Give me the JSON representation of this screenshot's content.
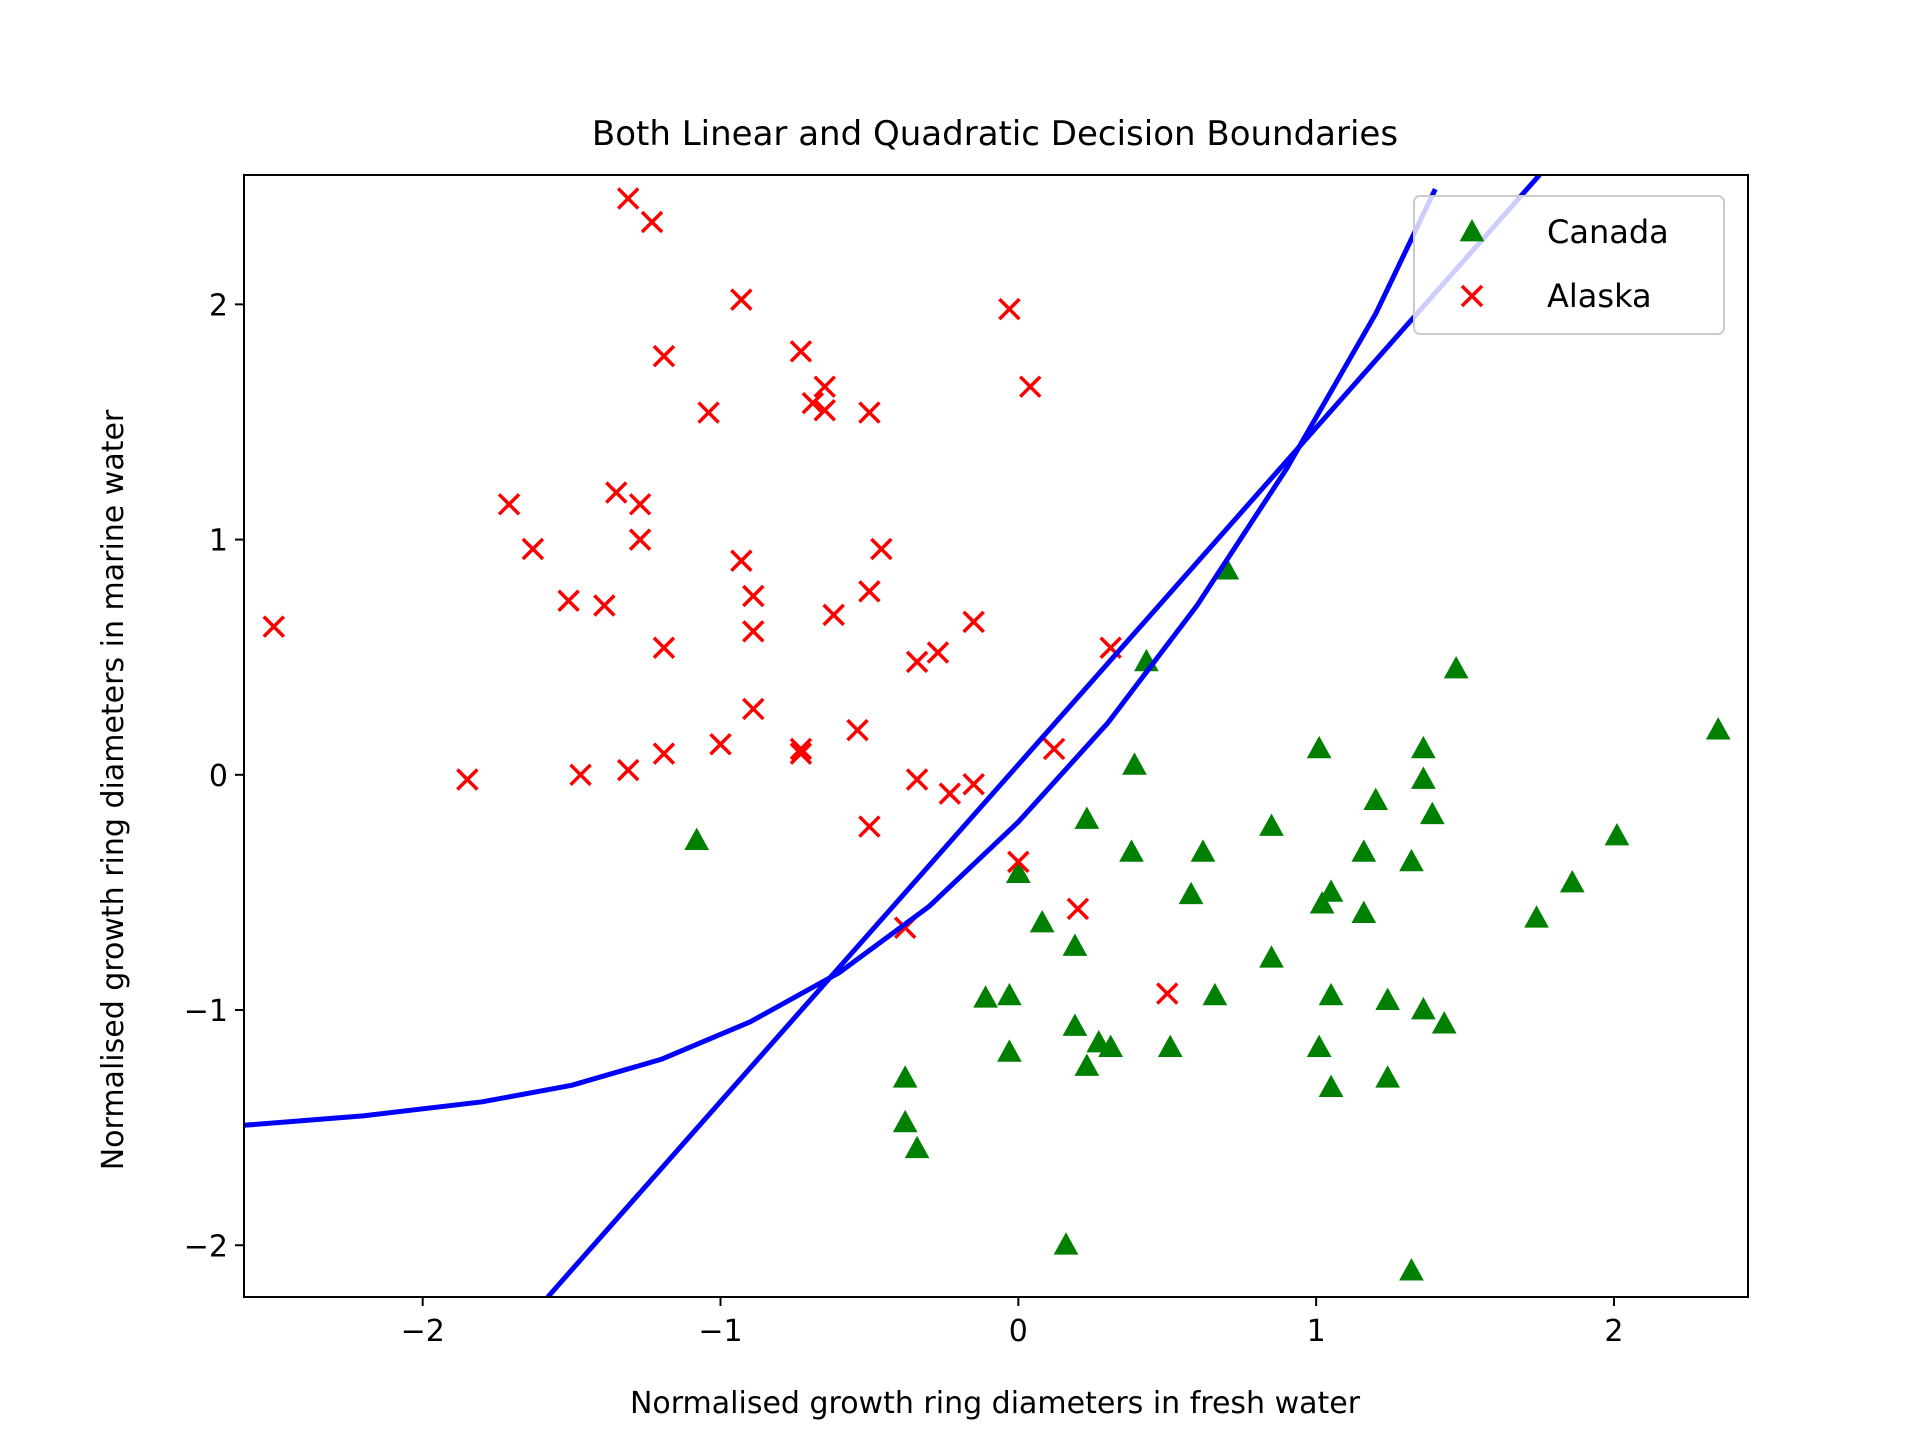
{
  "chart_data": {
    "type": "scatter",
    "title": "Both Linear and Quadratic Decision Boundaries",
    "xlabel": "Normalised growth ring diameters in fresh water",
    "ylabel": "Normalised growth ring diameters in marine water",
    "xlim": [
      -2.6,
      2.45
    ],
    "ylim": [
      -2.22,
      2.55
    ],
    "xticks": [
      -2,
      -1,
      0,
      1,
      2
    ],
    "yticks": [
      -2,
      -1,
      0,
      1,
      2
    ],
    "grid": false,
    "legend_position": "upper-right",
    "series": [
      {
        "name": "Canada",
        "marker": "triangle",
        "color": "#008000",
        "points": [
          [
            -1.08,
            -0.28
          ],
          [
            0.7,
            0.87
          ],
          [
            0.43,
            0.48
          ],
          [
            1.47,
            0.45
          ],
          [
            2.35,
            0.19
          ],
          [
            0.39,
            0.04
          ],
          [
            1.01,
            0.11
          ],
          [
            1.36,
            0.11
          ],
          [
            1.36,
            -0.02
          ],
          [
            1.2,
            -0.11
          ],
          [
            1.39,
            -0.17
          ],
          [
            0.23,
            -0.19
          ],
          [
            0.85,
            -0.22
          ],
          [
            2.01,
            -0.26
          ],
          [
            0.38,
            -0.33
          ],
          [
            0.62,
            -0.33
          ],
          [
            1.16,
            -0.33
          ],
          [
            1.32,
            -0.37
          ],
          [
            0.0,
            -0.42
          ],
          [
            1.86,
            -0.46
          ],
          [
            1.05,
            -0.5
          ],
          [
            0.58,
            -0.51
          ],
          [
            1.02,
            -0.55
          ],
          [
            1.16,
            -0.59
          ],
          [
            1.74,
            -0.61
          ],
          [
            0.08,
            -0.63
          ],
          [
            0.19,
            -0.73
          ],
          [
            0.85,
            -0.78
          ],
          [
            -0.11,
            -0.95
          ],
          [
            -0.03,
            -0.94
          ],
          [
            0.66,
            -0.94
          ],
          [
            1.05,
            -0.94
          ],
          [
            1.24,
            -0.96
          ],
          [
            1.36,
            -1.0
          ],
          [
            1.43,
            -1.06
          ],
          [
            0.19,
            -1.07
          ],
          [
            0.27,
            -1.14
          ],
          [
            0.31,
            -1.16
          ],
          [
            0.51,
            -1.16
          ],
          [
            1.01,
            -1.16
          ],
          [
            -0.03,
            -1.18
          ],
          [
            0.23,
            -1.24
          ],
          [
            -0.38,
            -1.29
          ],
          [
            1.24,
            -1.29
          ],
          [
            1.05,
            -1.33
          ],
          [
            -0.38,
            -1.48
          ],
          [
            -0.34,
            -1.59
          ],
          [
            0.16,
            -2.0
          ],
          [
            1.32,
            -2.11
          ]
        ]
      },
      {
        "name": "Alaska",
        "marker": "x",
        "color": "#ff0000",
        "points": [
          [
            -1.31,
            2.45
          ],
          [
            -1.23,
            2.35
          ],
          [
            -0.93,
            2.02
          ],
          [
            -0.03,
            1.98
          ],
          [
            -1.19,
            1.78
          ],
          [
            -0.73,
            1.8
          ],
          [
            0.04,
            1.65
          ],
          [
            -0.65,
            1.65
          ],
          [
            -0.69,
            1.58
          ],
          [
            -0.65,
            1.55
          ],
          [
            -1.04,
            1.54
          ],
          [
            -0.5,
            1.54
          ],
          [
            -1.35,
            1.2
          ],
          [
            -1.71,
            1.15
          ],
          [
            -1.27,
            1.15
          ],
          [
            -1.27,
            1.0
          ],
          [
            -1.63,
            0.96
          ],
          [
            -0.46,
            0.96
          ],
          [
            -0.93,
            0.91
          ],
          [
            -0.5,
            0.78
          ],
          [
            -0.89,
            0.76
          ],
          [
            -1.51,
            0.74
          ],
          [
            -1.39,
            0.72
          ],
          [
            -0.62,
            0.68
          ],
          [
            -0.15,
            0.65
          ],
          [
            -2.5,
            0.63
          ],
          [
            -0.89,
            0.61
          ],
          [
            -1.19,
            0.54
          ],
          [
            0.31,
            0.54
          ],
          [
            -0.27,
            0.52
          ],
          [
            -0.34,
            0.48
          ],
          [
            -0.89,
            0.28
          ],
          [
            -0.54,
            0.19
          ],
          [
            -1.0,
            0.13
          ],
          [
            0.12,
            0.11
          ],
          [
            -0.73,
            0.11
          ],
          [
            -0.73,
            0.09
          ],
          [
            -1.19,
            0.09
          ],
          [
            -1.31,
            0.02
          ],
          [
            -1.47,
            0.0
          ],
          [
            -1.85,
            -0.02
          ],
          [
            -0.34,
            -0.02
          ],
          [
            -0.15,
            -0.04
          ],
          [
            -0.23,
            -0.08
          ],
          [
            -0.5,
            -0.22
          ],
          [
            0.0,
            -0.37
          ],
          [
            0.2,
            -0.57
          ],
          [
            -0.38,
            -0.65
          ],
          [
            0.5,
            -0.93
          ]
        ]
      }
    ],
    "boundaries": [
      {
        "type": "linear",
        "color": "#0000ff",
        "points": [
          [
            -1.58,
            -2.22
          ],
          [
            1.75,
            2.55
          ]
        ]
      },
      {
        "type": "quadratic",
        "color": "#0000ff",
        "points": [
          [
            -2.6,
            -1.49
          ],
          [
            -2.2,
            -1.45
          ],
          [
            -1.8,
            -1.39
          ],
          [
            -1.5,
            -1.32
          ],
          [
            -1.2,
            -1.21
          ],
          [
            -0.9,
            -1.05
          ],
          [
            -0.6,
            -0.84
          ],
          [
            -0.3,
            -0.56
          ],
          [
            0.0,
            -0.2
          ],
          [
            0.3,
            0.22
          ],
          [
            0.6,
            0.72
          ],
          [
            0.9,
            1.3
          ],
          [
            1.2,
            1.96
          ],
          [
            1.4,
            2.49
          ]
        ]
      }
    ]
  }
}
